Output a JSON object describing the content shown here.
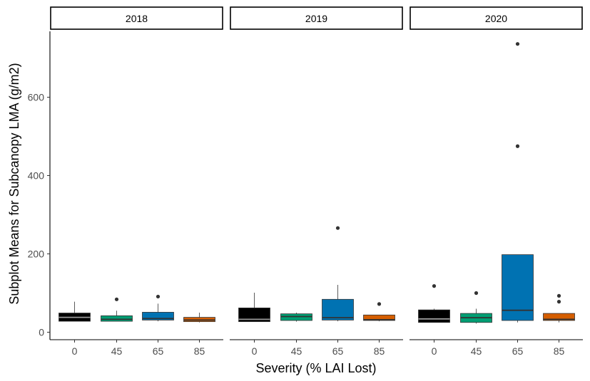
{
  "chart_data": {
    "type": "boxplot",
    "ylabel": "Subplot Means for Subcanopy LMA (g/m2)",
    "xlabel": "Severity (% LAI Lost)",
    "categories": [
      "0",
      "45",
      "65",
      "85"
    ],
    "yticks": [
      0,
      200,
      400,
      600
    ],
    "ylim": [
      -20,
      780
    ],
    "colors": {
      "0": "#000000",
      "45": "#009E73",
      "65": "#0072B2",
      "85": "#D55E00"
    },
    "facets": [
      {
        "label": "2018",
        "boxes": [
          {
            "category": "0",
            "whisker_low": 28,
            "q1": 28,
            "median": 38,
            "q3": 49,
            "whisker_high": 78,
            "outliers": []
          },
          {
            "category": "45",
            "whisker_low": 28,
            "q1": 28,
            "median": 33,
            "q3": 42,
            "whisker_high": 55,
            "outliers": [
              84
            ]
          },
          {
            "category": "65",
            "whisker_low": 28,
            "q1": 31,
            "median": 35,
            "q3": 51,
            "whisker_high": 73,
            "outliers": [
              91
            ]
          },
          {
            "category": "85",
            "whisker_low": 25,
            "q1": 27,
            "median": 31,
            "q3": 38,
            "whisker_high": 50,
            "outliers": []
          }
        ]
      },
      {
        "label": "2019",
        "boxes": [
          {
            "category": "0",
            "whisker_low": 27,
            "q1": 27,
            "median": 33,
            "q3": 62,
            "whisker_high": 101,
            "outliers": []
          },
          {
            "category": "45",
            "whisker_low": 27,
            "q1": 30,
            "median": 40,
            "q3": 47,
            "whisker_high": 50,
            "outliers": []
          },
          {
            "category": "65",
            "whisker_low": 28,
            "q1": 31,
            "median": 37,
            "q3": 84,
            "whisker_high": 121,
            "outliers": [
              266
            ]
          },
          {
            "category": "85",
            "whisker_low": 28,
            "q1": 30,
            "median": 32,
            "q3": 44,
            "whisker_high": 44,
            "outliers": [
              72
            ]
          }
        ]
      },
      {
        "label": "2020",
        "boxes": [
          {
            "category": "0",
            "whisker_low": 25,
            "q1": 25,
            "median": 34,
            "q3": 57,
            "whisker_high": 60,
            "outliers": [
              118
            ]
          },
          {
            "category": "45",
            "whisker_low": 22,
            "q1": 25,
            "median": 37,
            "q3": 48,
            "whisker_high": 60,
            "outliers": [
              100
            ]
          },
          {
            "category": "65",
            "whisker_low": 25,
            "q1": 30,
            "median": 56,
            "q3": 198,
            "whisker_high": 198,
            "outliers": [
              475,
              736
            ]
          },
          {
            "category": "85",
            "whisker_low": 25,
            "q1": 30,
            "median": 33,
            "q3": 48,
            "whisker_high": 48,
            "outliers": [
              78,
              93
            ]
          }
        ]
      }
    ]
  }
}
